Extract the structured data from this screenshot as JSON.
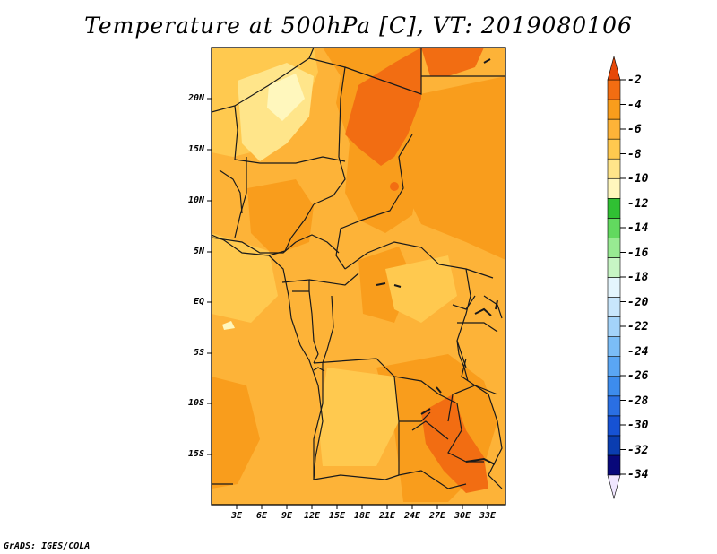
{
  "title": "Temperature at 500hPa [C], VT: 2019080106",
  "credit": "GrADS: IGES/COLA",
  "lat_labels": [
    "20N",
    "15N",
    "10N",
    "5N",
    "EQ",
    "5S",
    "10S",
    "15S"
  ],
  "lon_labels": [
    "3E",
    "6E",
    "9E",
    "12E",
    "15E",
    "18E",
    "21E",
    "24E",
    "27E",
    "30E",
    "33E"
  ],
  "colorbar": {
    "labels": [
      "-2",
      "-4",
      "-6",
      "-8",
      "-10",
      "-12",
      "-14",
      "-16",
      "-18",
      "-20",
      "-22",
      "-24",
      "-26",
      "-28",
      "-30",
      "-32",
      "-34"
    ],
    "colors": [
      "#f0e6ff",
      "#08087a",
      "#0a3db0",
      "#1652d4",
      "#2a6fe3",
      "#3d8ced",
      "#5aa6f4",
      "#7bbdf7",
      "#a3d3fa",
      "#c8e6fc",
      "#e4f5fd",
      "#c7f5c4",
      "#98ea92",
      "#62d95f",
      "#30c033",
      "#fff7bd",
      "#ffe58a",
      "#ffc94f",
      "#fdb338",
      "#f99d1c",
      "#f26d12",
      "#e64808"
    ]
  }
}
